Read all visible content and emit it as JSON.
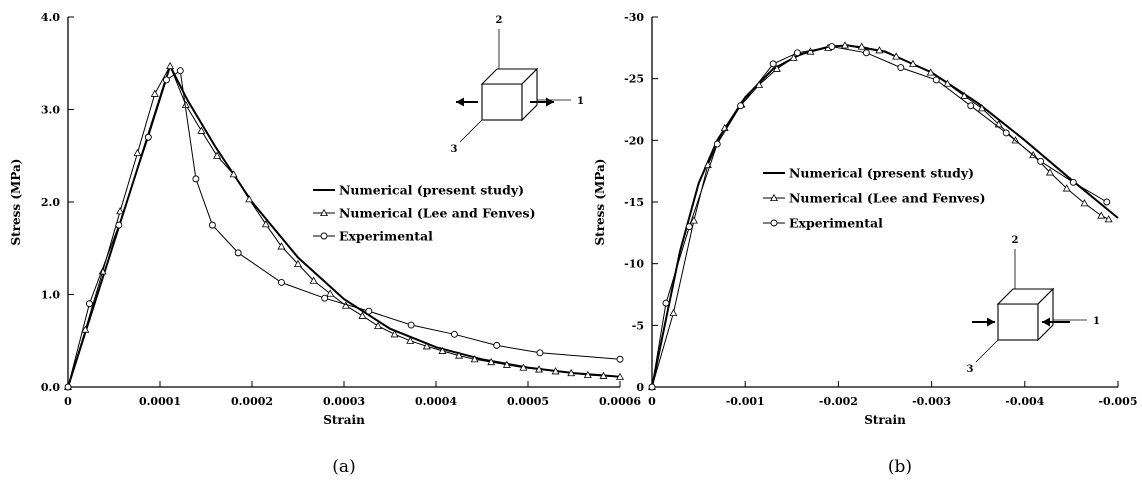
{
  "chart_data": [
    {
      "type": "line",
      "panel_label": "(a)",
      "xlabel": "Strain",
      "ylabel": "Stress (MPa)",
      "xlim": [
        0,
        0.0006
      ],
      "ylim": [
        0,
        4.0
      ],
      "x_ticks": [
        0,
        0.0001,
        0.0002,
        0.0003,
        0.0004,
        0.0005,
        0.0006
      ],
      "x_tick_labels": [
        "0",
        "0.0001",
        "0.0002",
        "0.0003",
        "0.0004",
        "0.0005",
        "0.0006"
      ],
      "y_ticks": [
        0,
        1,
        2,
        3,
        4
      ],
      "y_tick_labels": [
        "0.0",
        "1.0",
        "2.0",
        "3.0",
        "4.0"
      ],
      "legend_position": "center-right",
      "inset_axis_labels": [
        "2",
        "1",
        "3"
      ],
      "series": [
        {
          "name": "Numerical (present study)",
          "marker": "none",
          "x": [
            0,
            0.000111,
            0.00013,
            0.00016,
            0.0002,
            0.00025,
            0.0003,
            0.00035,
            0.0004,
            0.00045,
            0.0005,
            0.00055,
            0.0006
          ],
          "y": [
            0,
            3.47,
            3.1,
            2.6,
            2.0,
            1.4,
            0.95,
            0.63,
            0.43,
            0.3,
            0.21,
            0.15,
            0.11
          ]
        },
        {
          "name": "Numerical (Lee and Fenves)",
          "marker": "triangle",
          "x": [
            0,
            1.89e-05,
            3.77e-05,
            5.66e-05,
            7.55e-05,
            9.43e-05,
            0.000111,
            0.000128,
            0.000145,
            0.000162,
            0.00018,
            0.000197,
            0.000215,
            0.000232,
            0.00025,
            0.000267,
            0.000285,
            0.000302,
            0.00032,
            0.000337,
            0.000355,
            0.000372,
            0.00039,
            0.000407,
            0.000425,
            0.000442,
            0.00046,
            0.000477,
            0.000495,
            0.000512,
            0.00053,
            0.000547,
            0.000565,
            0.000582,
            0.0006
          ],
          "y": [
            0,
            0.62,
            1.25,
            1.9,
            2.53,
            3.17,
            3.47,
            3.05,
            2.77,
            2.5,
            2.3,
            2.03,
            1.76,
            1.52,
            1.33,
            1.15,
            1.01,
            0.88,
            0.77,
            0.66,
            0.57,
            0.5,
            0.44,
            0.39,
            0.34,
            0.3,
            0.27,
            0.24,
            0.21,
            0.19,
            0.17,
            0.15,
            0.13,
            0.12,
            0.11
          ]
        },
        {
          "name": "Experimental",
          "marker": "circle",
          "x": [
            0,
            2.33e-05,
            5.53e-05,
            8.73e-05,
            0.000107,
            0.000122,
            0.000139,
            0.000157,
            0.000185,
            0.000232,
            0.000279,
            0.000327,
            0.000373,
            0.00042,
            0.000466,
            0.000513,
            0.0006
          ],
          "y": [
            0,
            0.9,
            1.75,
            2.7,
            3.32,
            3.42,
            2.25,
            1.75,
            1.45,
            1.13,
            0.96,
            0.82,
            0.67,
            0.57,
            0.45,
            0.37,
            0.3
          ]
        }
      ]
    },
    {
      "type": "line",
      "panel_label": "(b)",
      "xlabel": "Strain",
      "ylabel": "Stress (MPa)",
      "xlim": [
        0,
        -0.005
      ],
      "ylim": [
        0,
        -30
      ],
      "x_ticks": [
        0,
        -0.001,
        -0.002,
        -0.003,
        -0.004,
        -0.005
      ],
      "x_tick_labels": [
        "0",
        "-0.001",
        "-0.002",
        "-0.003",
        "-0.004",
        "-0.005"
      ],
      "y_ticks": [
        0,
        -5,
        -10,
        -15,
        -20,
        -25,
        -30
      ],
      "y_tick_labels": [
        "0",
        "-5",
        "-10",
        "-15",
        "-20",
        "-25",
        "-30"
      ],
      "legend_position": "center",
      "inset_axis_labels": [
        "2",
        "1",
        "3"
      ],
      "series": [
        {
          "name": "Numerical (present study)",
          "marker": "none",
          "x": [
            0,
            -0.0003,
            -0.0005,
            -0.0007,
            -0.001,
            -0.0013,
            -0.0016,
            -0.0019,
            -0.0021,
            -0.0025,
            -0.003,
            -0.0035,
            -0.004,
            -0.0045,
            -0.005
          ],
          "y": [
            0,
            -11,
            -16.5,
            -20,
            -23.5,
            -25.8,
            -27,
            -27.6,
            -27.7,
            -27.2,
            -25.5,
            -23,
            -20,
            -16.8,
            -13.7
          ]
        },
        {
          "name": "Numerical (Lee and Fenves)",
          "marker": "triangle",
          "x": [
            0,
            -0.00023,
            -0.00045,
            -0.0006,
            -0.00078,
            -0.00096,
            -0.00115,
            -0.00134,
            -0.00152,
            -0.0017,
            -0.00189,
            -0.00207,
            -0.00225,
            -0.00244,
            -0.00262,
            -0.0028,
            -0.00299,
            -0.00317,
            -0.00335,
            -0.00354,
            -0.00372,
            -0.0039,
            -0.00409,
            -0.00427,
            -0.00445,
            -0.00464,
            -0.00482,
            -0.0049
          ],
          "y": [
            0,
            -6,
            -13.5,
            -18,
            -21,
            -22.9,
            -24.5,
            -25.8,
            -26.7,
            -27.2,
            -27.5,
            -27.7,
            -27.6,
            -27.3,
            -26.8,
            -26.2,
            -25.5,
            -24.6,
            -23.6,
            -22.6,
            -21.3,
            -20,
            -18.8,
            -17.4,
            -16.1,
            -14.9,
            -13.9,
            -13.6
          ]
        },
        {
          "name": "Experimental",
          "marker": "circle",
          "x": [
            0,
            -0.00015,
            -0.0004,
            -0.0007,
            -0.00095,
            -0.0013,
            -0.00156,
            -0.00193,
            -0.0023,
            -0.00267,
            -0.00305,
            -0.00342,
            -0.0038,
            -0.00417,
            -0.00452,
            -0.00488
          ],
          "y": [
            0,
            -6.8,
            -13,
            -19.7,
            -22.8,
            -26.2,
            -27.1,
            -27.6,
            -27.1,
            -25.9,
            -24.9,
            -22.8,
            -20.6,
            -18.3,
            -16.6,
            -15
          ]
        }
      ]
    }
  ]
}
